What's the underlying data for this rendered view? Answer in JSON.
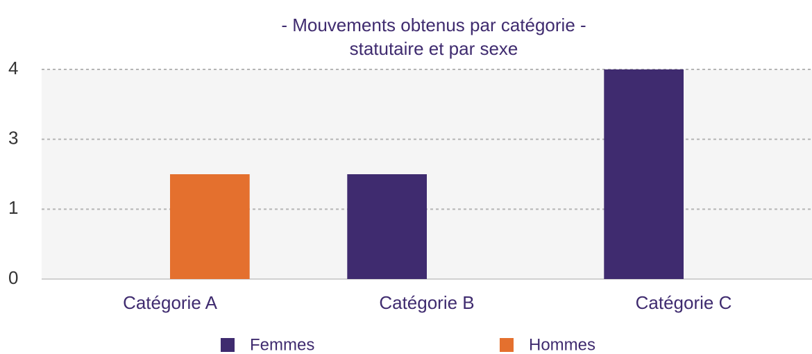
{
  "chart_data": {
    "type": "bar",
    "title": [
      "- Mouvements obtenus par catégorie -",
      "statutaire et par sexe"
    ],
    "categories": [
      "Catégorie A",
      "Catégorie B",
      "Catégorie C"
    ],
    "series": [
      {
        "name": "Femmes",
        "color": "#3f2b6f",
        "values": [
          0,
          2,
          4
        ]
      },
      {
        "name": "Hommes",
        "color": "#e4702e",
        "values": [
          2,
          0,
          0
        ]
      }
    ],
    "ylim": [
      0,
      4
    ],
    "yticks": [
      0,
      {
        "value": 1.3333,
        "label": "1"
      },
      {
        "value": 2.6667,
        "label": "3"
      },
      4
    ],
    "grid": true,
    "legend": "bottom"
  }
}
